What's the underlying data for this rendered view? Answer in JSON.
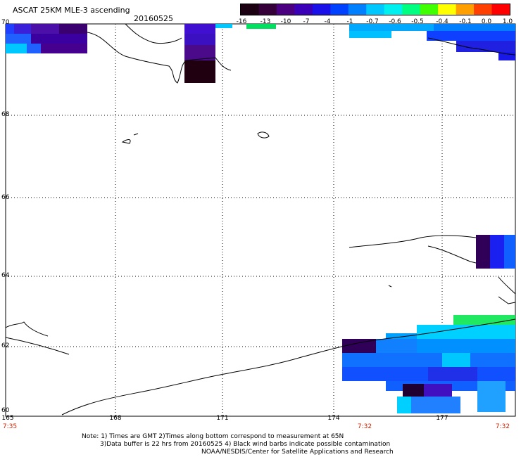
{
  "header": {
    "title": "ASCAT 25KM MLE-3 ascending",
    "date": "20160525"
  },
  "colorbar": {
    "labels": [
      "-16",
      "-13",
      "-10",
      "-7",
      "-4",
      "-1",
      "-0.7",
      "-0.6",
      "-0.5",
      "-0.4",
      "-0.1",
      "0.0",
      "1.0"
    ],
    "colors": [
      "#1a0010",
      "#35003a",
      "#4a0080",
      "#3a00b8",
      "#1a10e8",
      "#0040ff",
      "#0080ff",
      "#00c8ff",
      "#00f0f0",
      "#00ff80",
      "#40ff00",
      "#ffff00",
      "#ffa000",
      "#ff4000",
      "#ff0000"
    ]
  },
  "axes": {
    "lat_labels": [
      "70",
      "68",
      "66",
      "64",
      "62",
      "60"
    ],
    "lon_labels": [
      "165",
      "168",
      "171",
      "174",
      "177"
    ],
    "times": [
      "7:35",
      "7:32",
      "7:32"
    ]
  },
  "footer": {
    "line1": "Note: 1) Times are GMT 2)Times along bottom correspond to measurement at 65N",
    "line2": "3)Data buffer is 22 hrs from 20160525 4) Black wind barbs indicate possible contamination",
    "line3": "NOAA/NESDIS/Center for Satellite Applications and Research"
  }
}
